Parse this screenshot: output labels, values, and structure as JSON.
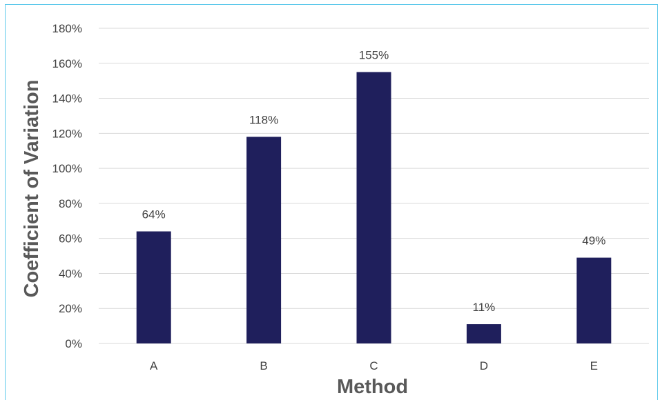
{
  "chart_data": {
    "type": "bar",
    "categories": [
      "A",
      "B",
      "C",
      "D",
      "E"
    ],
    "values": [
      0.64,
      1.18,
      1.55,
      0.11,
      0.49
    ],
    "data_labels": [
      "64%",
      "118%",
      "155%",
      "11%",
      "49%"
    ],
    "xlabel": "Method",
    "ylabel": "Coefficient of Variation",
    "ylim": [
      0,
      1.8
    ],
    "yticks": [
      0,
      0.2,
      0.4,
      0.6,
      0.8,
      1.0,
      1.2,
      1.4,
      1.6,
      1.8
    ],
    "ytick_labels": [
      "0%",
      "20%",
      "40%",
      "60%",
      "80%",
      "100%",
      "120%",
      "140%",
      "160%",
      "180%"
    ],
    "grid": true,
    "legend": "none",
    "bar_color": "#1f1f5c",
    "grid_color": "#d9d9d9",
    "frame_color": "#5bc8ea"
  }
}
